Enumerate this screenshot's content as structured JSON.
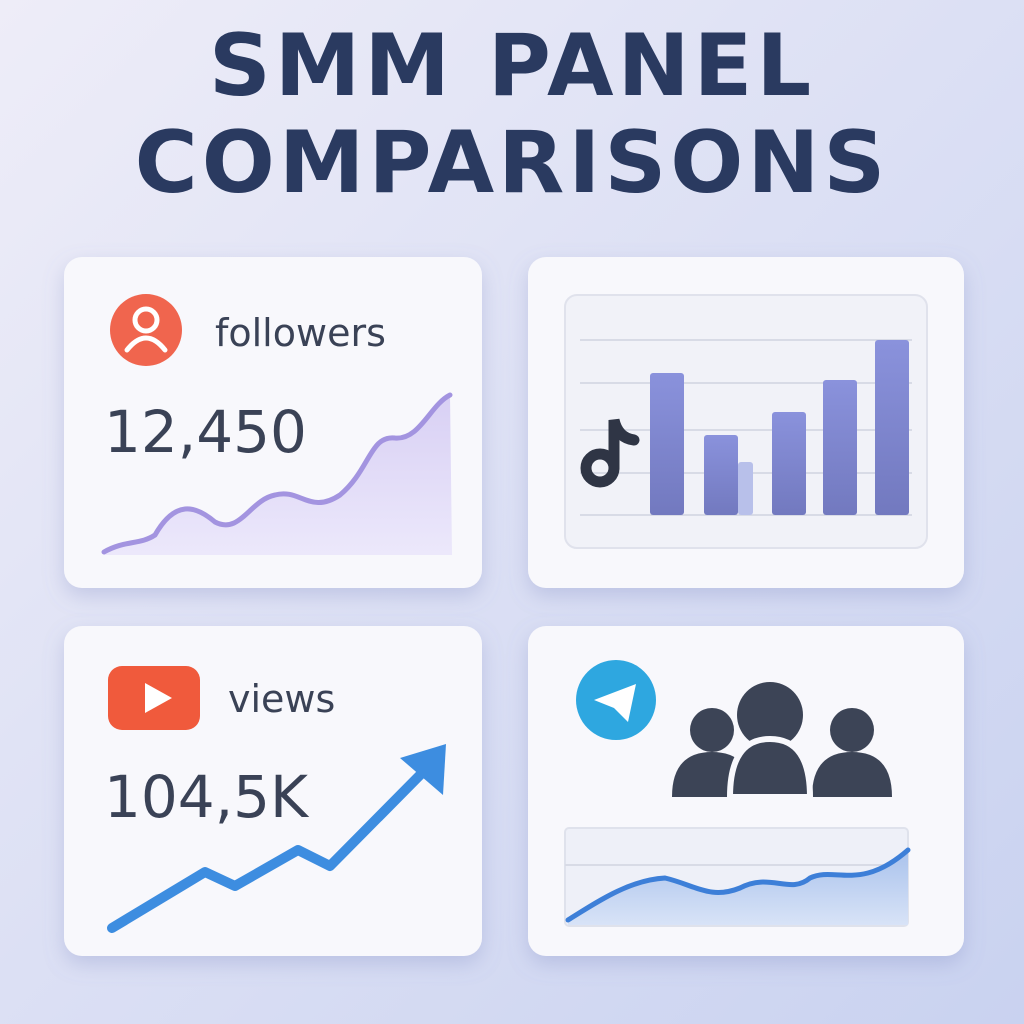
{
  "header": {
    "title": [
      "SMM PANEL",
      "COMPARISONS"
    ]
  },
  "cards": [
    {
      "label": "followers",
      "value": "12,450"
    },
    {
      "label": "views",
      "value": "104,5K"
    }
  ]
}
